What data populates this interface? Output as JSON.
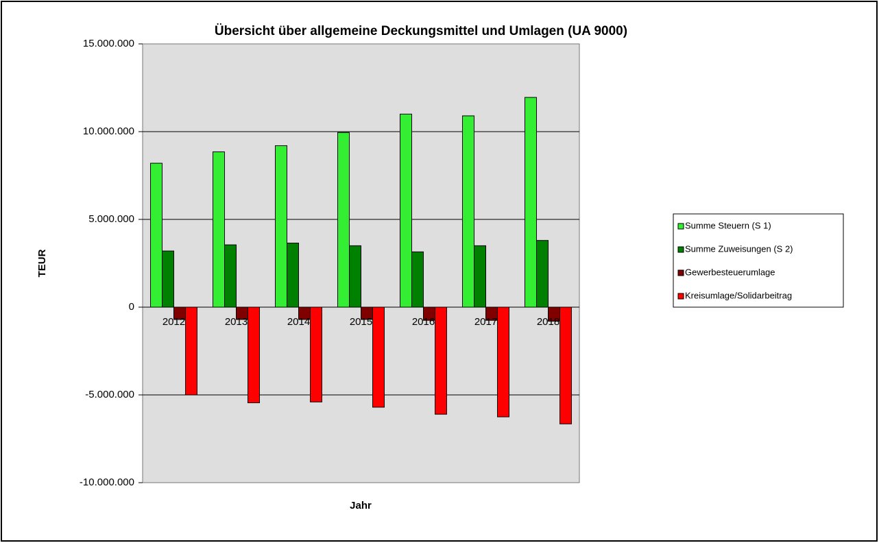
{
  "chart_data": {
    "type": "bar",
    "title": "Übersicht über allgemeine Deckungsmittel und Umlagen (UA 9000)",
    "x_label": "Jahr",
    "y_label": "TEUR",
    "categories": [
      "2012",
      "2013",
      "2014",
      "2015",
      "2016",
      "2017",
      "2018"
    ],
    "series": [
      {
        "name": "Summe Steuern (S 1)",
        "color": "#33ee33",
        "values": [
          8200000,
          8850000,
          9200000,
          9950000,
          11000000,
          10900000,
          11950000
        ]
      },
      {
        "name": "Summe Zuweisungen (S 2)",
        "color": "#008000",
        "values": [
          3200000,
          3550000,
          3650000,
          3500000,
          3150000,
          3500000,
          3800000
        ]
      },
      {
        "name": "Gewerbesteuerumlage",
        "color": "#800000",
        "values": [
          -700000,
          -700000,
          -700000,
          -700000,
          -750000,
          -750000,
          -800000
        ]
      },
      {
        "name": "Kreisumlage/Solidarbeitrag",
        "color": "#ff0000",
        "values": [
          -5000000,
          -5450000,
          -5400000,
          -5700000,
          -6100000,
          -6250000,
          -6650000
        ]
      }
    ],
    "ylim": [
      -10000000,
      15000000
    ],
    "yticks": [
      {
        "value": -10000000,
        "label": "-10.000.000"
      },
      {
        "value": -5000000,
        "label": "-5.000.000"
      },
      0,
      {
        "value": 5000000,
        "label": "5.000.000"
      },
      {
        "value": 10000000,
        "label": "10.000.000"
      },
      {
        "value": 15000000,
        "label": "15.000.000"
      }
    ],
    "grid": true,
    "legend": "right"
  }
}
